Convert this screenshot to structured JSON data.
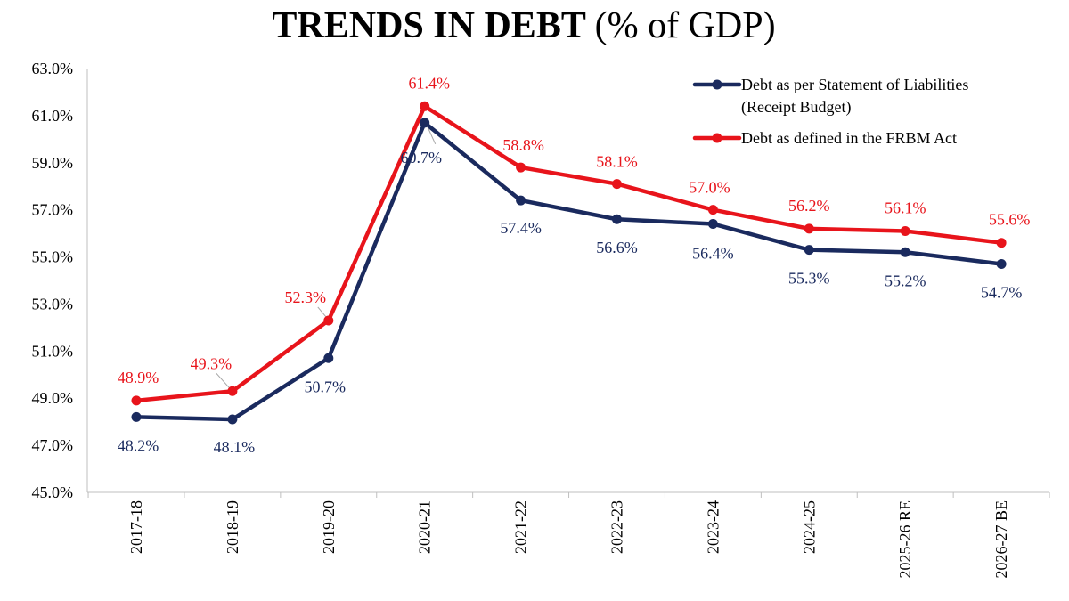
{
  "title": {
    "main": "TRENDS IN DEBT",
    "sub": "(% of GDP)"
  },
  "chart_data": {
    "type": "line",
    "title": "TRENDS IN DEBT (% of GDP)",
    "categories": [
      "2017-18",
      "2018-19",
      "2019-20",
      "2020-21",
      "2021-22",
      "2022-23",
      "2023-24",
      "2024-25",
      "2025-26 RE",
      "2026-27 BE"
    ],
    "ylim": [
      45.0,
      63.0
    ],
    "ytick_step": 2.0,
    "ytick_labels": [
      "45.0%",
      "47.0%",
      "49.0%",
      "51.0%",
      "53.0%",
      "55.0%",
      "57.0%",
      "59.0%",
      "61.0%",
      "63.0%"
    ],
    "xlabel": "",
    "ylabel": "",
    "grid": false,
    "legend_position": "top-right",
    "series": [
      {
        "name": "Debt as per Statement of Liabilities",
        "name_line2": "(Receipt Budget)",
        "color": "#1a2a5e",
        "values": [
          48.2,
          48.1,
          50.7,
          60.7,
          57.4,
          56.6,
          56.4,
          55.3,
          55.2,
          54.7
        ],
        "labels": [
          "48.2%",
          "48.1%",
          "50.7%",
          "60.7%",
          "57.4%",
          "56.6%",
          "56.4%",
          "55.3%",
          "55.2%",
          "54.7%"
        ]
      },
      {
        "name": "Debt as defined in the FRBM Act",
        "color": "#e8141b",
        "values": [
          48.9,
          49.3,
          52.3,
          61.4,
          58.8,
          58.1,
          57.0,
          56.2,
          56.1,
          55.6
        ],
        "labels": [
          "48.9%",
          "49.3%",
          "52.3%",
          "61.4%",
          "58.8%",
          "58.1%",
          "57.0%",
          "56.2%",
          "56.1%",
          "55.6%"
        ]
      }
    ]
  }
}
